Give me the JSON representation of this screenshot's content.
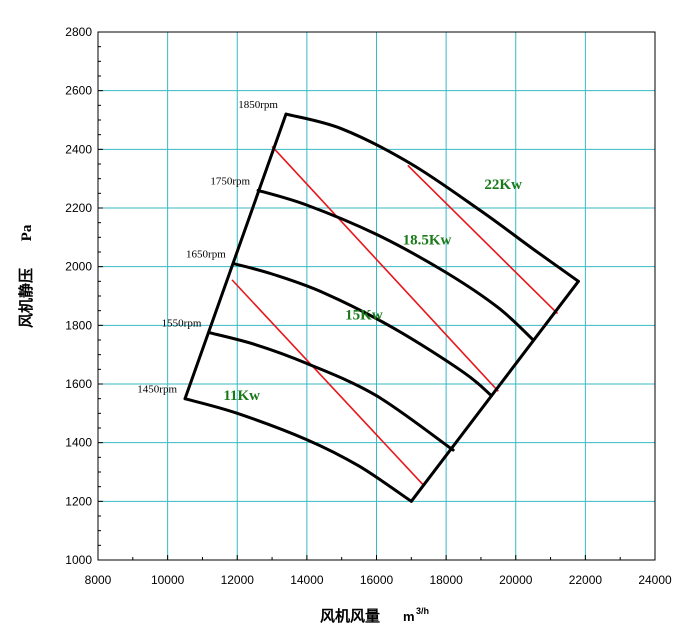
{
  "chart_data": {
    "type": "line",
    "title": "",
    "xlabel": "风机风量",
    "xlabel_unit": "m",
    "xlabel_unit_sup": "3/h",
    "ylabel": "风机静压",
    "ylabel_unit": "Pa",
    "xlim": [
      8000,
      24000
    ],
    "ylim": [
      1000,
      2800
    ],
    "xticks": [
      8000,
      10000,
      12000,
      14000,
      16000,
      18000,
      20000,
      22000,
      24000
    ],
    "yticks": [
      1000,
      1200,
      1400,
      1600,
      1800,
      2000,
      2200,
      2400,
      2600,
      2800
    ],
    "grid": true,
    "speed_curves": [
      {
        "name": "1450rpm",
        "points": [
          [
            10500,
            1550
          ],
          [
            12000,
            1500
          ],
          [
            14000,
            1410
          ],
          [
            15500,
            1320
          ],
          [
            17000,
            1200
          ]
        ]
      },
      {
        "name": "1550rpm",
        "points": [
          [
            11200,
            1775
          ],
          [
            12500,
            1735
          ],
          [
            14000,
            1670
          ],
          [
            16000,
            1560
          ],
          [
            18200,
            1375
          ]
        ]
      },
      {
        "name": "1650rpm",
        "points": [
          [
            11900,
            2010
          ],
          [
            13000,
            1975
          ],
          [
            14500,
            1910
          ],
          [
            16500,
            1790
          ],
          [
            18500,
            1640
          ],
          [
            19300,
            1560
          ]
        ]
      },
      {
        "name": "1750rpm",
        "points": [
          [
            12600,
            2260
          ],
          [
            14000,
            2210
          ],
          [
            16000,
            2110
          ],
          [
            18000,
            1980
          ],
          [
            19500,
            1860
          ],
          [
            20500,
            1750
          ]
        ]
      },
      {
        "name": "1850rpm",
        "points": [
          [
            13400,
            2520
          ],
          [
            15000,
            2470
          ],
          [
            17000,
            2350
          ],
          [
            19000,
            2190
          ],
          [
            20500,
            2060
          ],
          [
            21800,
            1950
          ]
        ]
      }
    ],
    "boundaries": [
      {
        "name": "min-flow",
        "points": [
          [
            10500,
            1550
          ],
          [
            13400,
            2520
          ]
        ]
      },
      {
        "name": "max-flow",
        "points": [
          [
            17000,
            1200
          ],
          [
            21800,
            1950
          ]
        ]
      }
    ],
    "power_lines": [
      {
        "points": [
          [
            11850,
            1955
          ],
          [
            17350,
            1255
          ]
        ]
      },
      {
        "points": [
          [
            13000,
            2410
          ],
          [
            19500,
            1575
          ]
        ]
      },
      {
        "points": [
          [
            16900,
            2345
          ],
          [
            21200,
            1840
          ]
        ]
      }
    ],
    "power_labels": [
      {
        "text": "11Kw",
        "x": 11600,
        "y": 1545
      },
      {
        "text": "15Kw",
        "x": 15100,
        "y": 1820
      },
      {
        "text": "18.5Kw",
        "x": 16750,
        "y": 2075
      },
      {
        "text": "22Kw",
        "x": 19100,
        "y": 2265
      }
    ],
    "colors": {
      "grid": "#37b9c4",
      "curve": "#000000",
      "power_line": "#e8161b",
      "power_label": "#1a7a1a"
    }
  }
}
